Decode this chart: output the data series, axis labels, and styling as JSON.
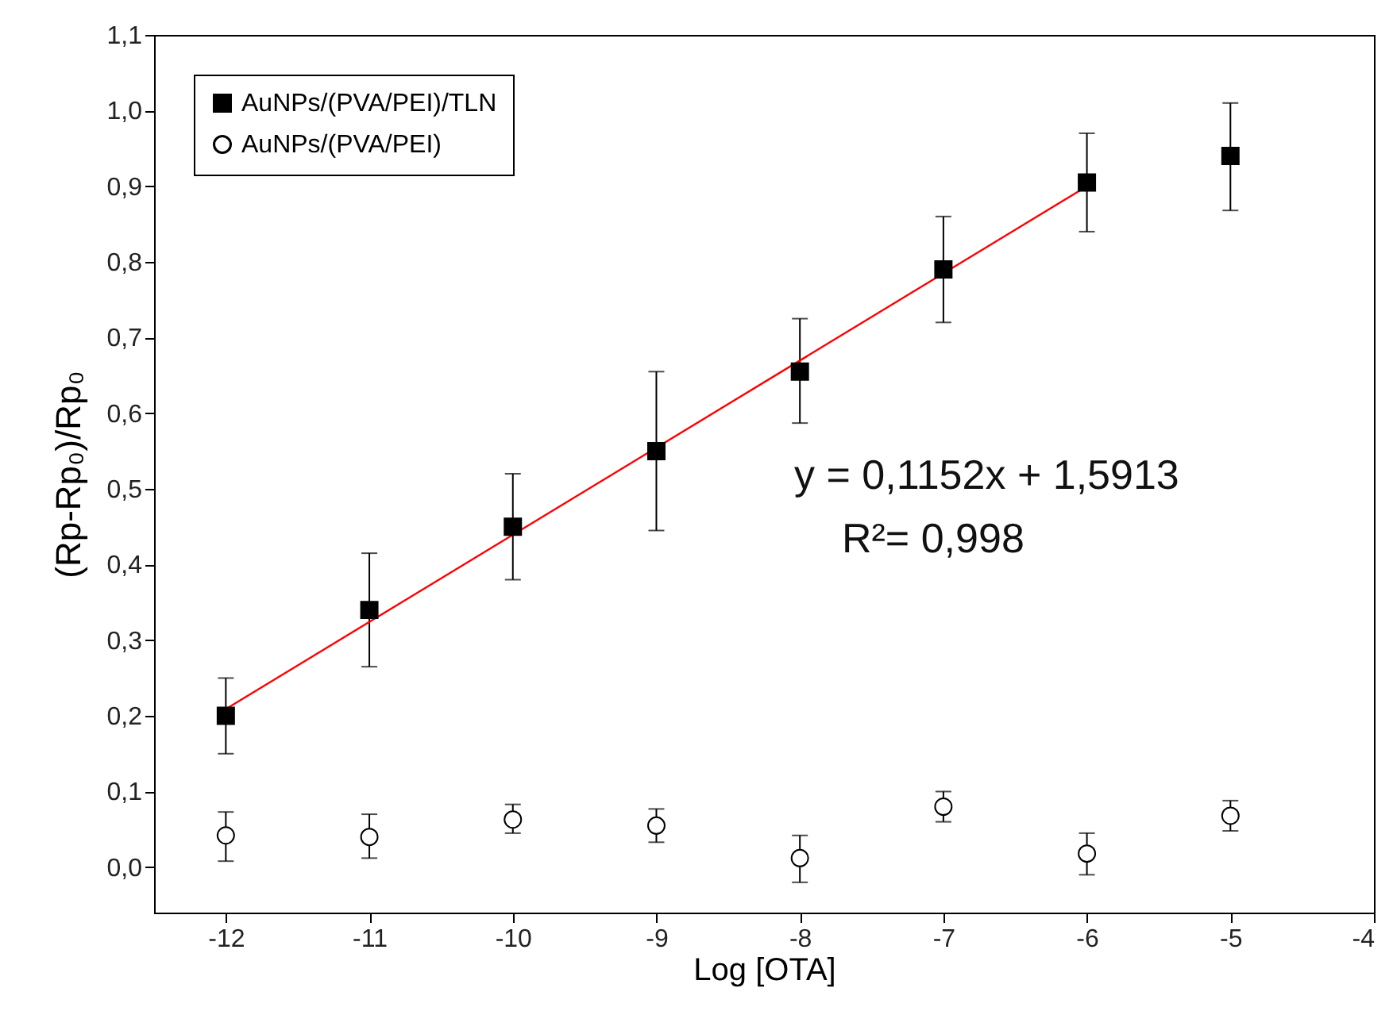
{
  "chart_data": {
    "type": "scatter",
    "xlabel": "Log [OTA]",
    "ylabel": "(Rp-Rp₀)/Rp₀",
    "xlim": [
      -12.5,
      -4
    ],
    "xticks": [
      -12,
      -11,
      -10,
      -9,
      -8,
      -7,
      -6,
      -5,
      -4
    ],
    "ylim": [
      -0.06,
      1.1
    ],
    "yticks": [
      {
        "value": 0,
        "label": "0,0"
      },
      {
        "value": 0.1,
        "label": "0,1"
      },
      {
        "value": 0.2,
        "label": "0,2"
      },
      {
        "value": 0.3,
        "label": "0,3"
      },
      {
        "value": 0.4,
        "label": "0,4"
      },
      {
        "value": 0.5,
        "label": "0,5"
      },
      {
        "value": 0.6,
        "label": "0,6"
      },
      {
        "value": 0.7,
        "label": "0,7"
      },
      {
        "value": 0.8,
        "label": "0,8"
      },
      {
        "value": 0.9,
        "label": "0,9"
      },
      {
        "value": 1.0,
        "label": "1,0"
      },
      {
        "value": 1.1,
        "label": "1,1"
      }
    ],
    "grid": false,
    "legend": "top left",
    "annotations": [
      "y = 0,1152x + 1,5913",
      "R²= 0,998"
    ],
    "series": [
      {
        "name": "AuNPs/(PVA/PEI)/TLN",
        "color": "#000000",
        "marker": "square",
        "x": [
          -12,
          -11,
          -10,
          -9,
          -8,
          -7,
          -6,
          -5
        ],
        "values": [
          0.2,
          0.34,
          0.45,
          0.55,
          0.655,
          0.79,
          0.905,
          0.94
        ],
        "errors": [
          [
            0.15,
            0.25
          ],
          [
            0.265,
            0.415
          ],
          [
            0.38,
            0.52
          ],
          [
            0.445,
            0.655
          ],
          [
            0.587,
            0.725
          ],
          [
            0.72,
            0.86
          ],
          [
            0.84,
            0.97
          ],
          [
            0.868,
            1.01
          ]
        ]
      },
      {
        "name": "AuNPs/(PVA/PEI)",
        "color": "#000000",
        "marker": "circle",
        "x": [
          -12,
          -11,
          -10,
          -9,
          -8,
          -7,
          -6,
          -5
        ],
        "values": [
          0.042,
          0.04,
          0.063,
          0.055,
          0.012,
          0.08,
          0.018,
          0.068
        ],
        "errors": [
          [
            0.008,
            0.073
          ],
          [
            0.012,
            0.07
          ],
          [
            0.045,
            0.083
          ],
          [
            0.033,
            0.077
          ],
          [
            -0.02,
            0.042
          ],
          [
            0.06,
            0.1
          ],
          [
            -0.01,
            0.045
          ],
          [
            0.048,
            0.088
          ]
        ]
      },
      {
        "type": "line",
        "color": "#ff0000",
        "x": [
          -12,
          -6
        ],
        "values": [
          0.209,
          0.9
        ]
      }
    ]
  }
}
